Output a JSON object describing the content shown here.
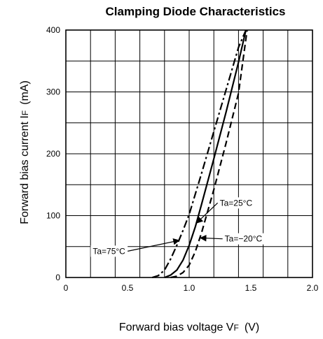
{
  "chart_data": {
    "type": "line",
    "title": "Clamping Diode Characteristics",
    "xlabel": {
      "main": "Forward bias voltage  V",
      "sub": "F",
      "unit": "(V)"
    },
    "ylabel": {
      "main": "Forward bias current  I",
      "sub": "F",
      "unit": "(mA)"
    },
    "xlim": [
      0,
      2.0
    ],
    "ylim": [
      0,
      400
    ],
    "grid": true,
    "x_ticks": [
      {
        "value": 0,
        "label": "0"
      },
      {
        "value": 0.5,
        "label": "0.5"
      },
      {
        "value": 1.0,
        "label": "1.0"
      },
      {
        "value": 1.5,
        "label": "1.5"
      },
      {
        "value": 2.0,
        "label": "2.0"
      }
    ],
    "y_ticks": [
      {
        "value": 0,
        "label": "0"
      },
      {
        "value": 100,
        "label": "100"
      },
      {
        "value": 200,
        "label": "200"
      },
      {
        "value": 300,
        "label": "300"
      },
      {
        "value": 400,
        "label": "400"
      }
    ],
    "x_grid_step": 0.2,
    "y_grid_step": 50,
    "series": [
      {
        "name": "Ta=75°C",
        "dash": "dashdot",
        "x": [
          0.7,
          0.75,
          0.8,
          0.85,
          0.9,
          0.95,
          1.0,
          1.1,
          1.2,
          1.3,
          1.4,
          1.46
        ],
        "y": [
          0,
          3,
          12,
          30,
          52,
          76,
          102,
          168,
          236,
          304,
          372,
          400
        ]
      },
      {
        "name": "Ta=25°C",
        "dash": "solid",
        "x": [
          0.8,
          0.85,
          0.9,
          0.95,
          1.0,
          1.05,
          1.1,
          1.2,
          1.3,
          1.4,
          1.46
        ],
        "y": [
          0,
          4,
          12,
          28,
          52,
          82,
          118,
          192,
          268,
          348,
          400
        ]
      },
      {
        "name": "Ta=-20°C",
        "dash": "dashed",
        "x": [
          0.85,
          0.9,
          0.95,
          1.0,
          1.05,
          1.1,
          1.2,
          1.3,
          1.4,
          1.47
        ],
        "y": [
          0,
          2,
          8,
          20,
          42,
          72,
          142,
          218,
          298,
          400
        ]
      }
    ],
    "annotations": [
      {
        "text": "Ta=75°C",
        "label_at": [
          0.35,
          38
        ],
        "arrow_to": [
          0.92,
          60
        ]
      },
      {
        "text": "Ta=25°C",
        "label_at": [
          1.38,
          116
        ],
        "arrow_to": [
          1.06,
          88
        ]
      },
      {
        "text": "Ta=−20°C",
        "label_at": [
          1.44,
          58
        ],
        "arrow_to": [
          1.09,
          64
        ]
      }
    ]
  }
}
